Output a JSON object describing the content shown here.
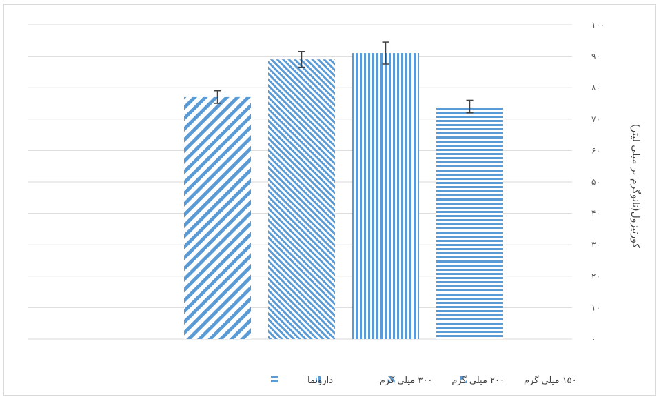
{
  "chart_data": {
    "type": "bar",
    "categories": [
      "۱۵۰ میلی گرم",
      "۲۰۰ میلی گرم",
      "۳۰۰ میلی گرم",
      "دارونما"
    ],
    "values": [
      77,
      89,
      91,
      74
    ],
    "errors": [
      2,
      2.5,
      3.5,
      2
    ],
    "title": "",
    "xlabel": "",
    "ylabel": "کورتیزول(نانوگرم بر میلی لیتر)",
    "ylim": [
      0,
      100
    ],
    "yticks": [
      0,
      10,
      20,
      30,
      40,
      50,
      60,
      70,
      80,
      90,
      100
    ],
    "ytick_labels": [
      "۰",
      "۱۰",
      "۲۰",
      "۳۰",
      "۴۰",
      "۵۰",
      "۶۰",
      "۷۰",
      "۸۰",
      "۹۰",
      "۱۰۰"
    ],
    "y_axis_side": "right",
    "grid": true,
    "legend_position": "bottom",
    "legend": [
      "۱۵۰ میلی گرم",
      "۲۰۰ میلی گرم",
      "۳۰۰ میلی گرم",
      "دارونما"
    ],
    "series_patterns": [
      "diagonal-down",
      "diagonal-dense",
      "vertical",
      "horizontal"
    ],
    "bar_color": "#5b9bd5",
    "grid_color": "#d9d9d9",
    "error_bar_color": "#404040"
  }
}
